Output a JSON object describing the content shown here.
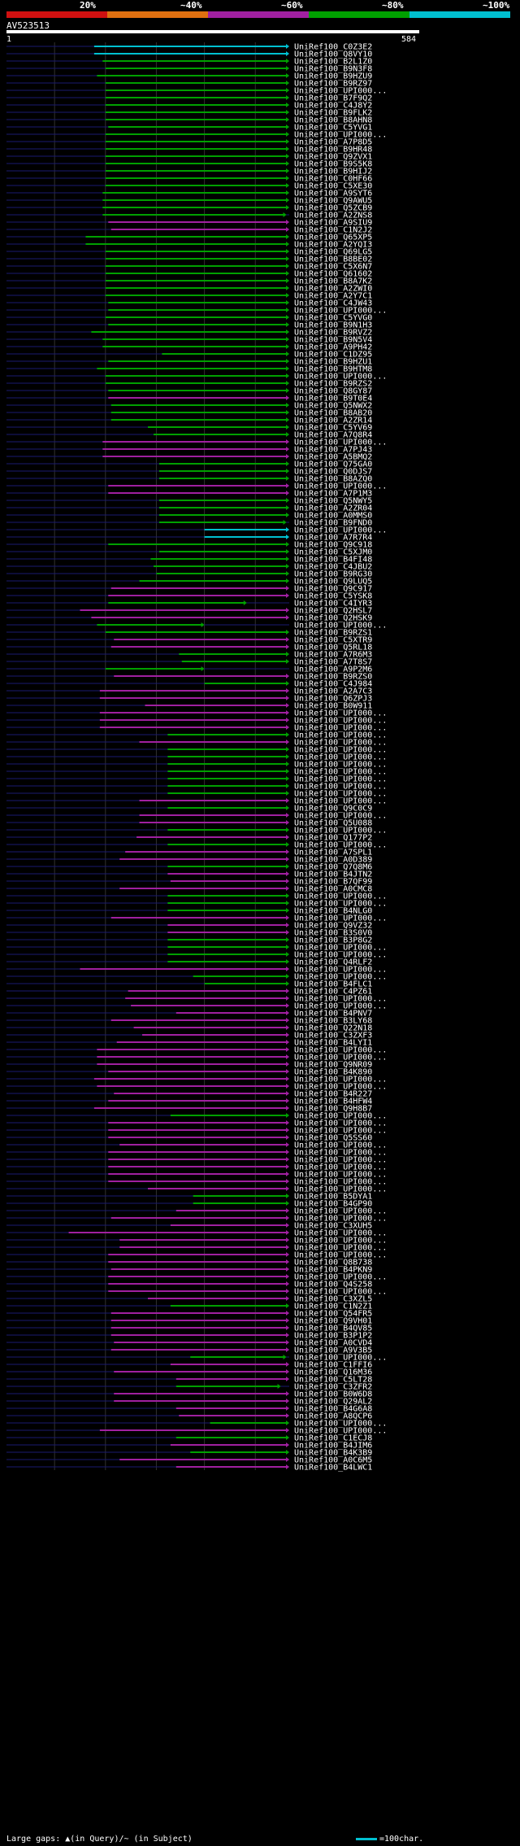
{
  "query_id": "AV523513",
  "ruler": {
    "start": "1",
    "end": "584"
  },
  "identity_legend": [
    {
      "label": "20%",
      "color": "#d01010"
    },
    {
      "label": "~40%",
      "color": "#e07010"
    },
    {
      "label": "~60%",
      "color": "#a020a0"
    },
    {
      "label": "~80%",
      "color": "#00a000"
    },
    {
      "label": "~100%",
      "color": "#00c0d0"
    }
  ],
  "footer": {
    "gaps_note": "Large gaps: ▲(in Query)/~ (in Subject)",
    "scale_note": "=100char."
  },
  "hits": [
    {
      "id": "UniRef100_C0Z3E2",
      "s": 0.31,
      "e": 1.0,
      "c": "c"
    },
    {
      "id": "UniRef100_Q8VY10",
      "s": 0.31,
      "e": 1.0,
      "c": "c"
    },
    {
      "id": "UniRef100_B2L1Z0",
      "s": 0.34,
      "e": 1.0,
      "c": "g"
    },
    {
      "id": "UniRef100_B9N3F8",
      "s": 0.35,
      "e": 1.0,
      "c": "g"
    },
    {
      "id": "UniRef100_B9HZU9",
      "s": 0.32,
      "e": 1.0,
      "c": "g"
    },
    {
      "id": "UniRef100_B9RZ97",
      "s": 0.35,
      "e": 1.0,
      "c": "g"
    },
    {
      "id": "UniRef100_UPI000...",
      "s": 0.35,
      "e": 1.0,
      "c": "g"
    },
    {
      "id": "UniRef100_B7F9Q2",
      "s": 0.35,
      "e": 1.0,
      "c": "g"
    },
    {
      "id": "UniRef100_C4J8Y2",
      "s": 0.35,
      "e": 1.0,
      "c": "g"
    },
    {
      "id": "UniRef100_B9FLK2",
      "s": 0.35,
      "e": 1.0,
      "c": "g"
    },
    {
      "id": "UniRef100_B8AHN8",
      "s": 0.35,
      "e": 1.0,
      "c": "g"
    },
    {
      "id": "UniRef100_C5YVG1",
      "s": 0.36,
      "e": 1.0,
      "c": "g"
    },
    {
      "id": "UniRef100_UPI000...",
      "s": 0.35,
      "e": 1.0,
      "c": "g"
    },
    {
      "id": "UniRef100_A7P8D5",
      "s": 0.35,
      "e": 1.0,
      "c": "g"
    },
    {
      "id": "UniRef100_B9HR48",
      "s": 0.35,
      "e": 1.0,
      "c": "g"
    },
    {
      "id": "UniRef100_Q9ZVX1",
      "s": 0.35,
      "e": 1.0,
      "c": "g"
    },
    {
      "id": "UniRef100_B9S5K8",
      "s": 0.35,
      "e": 1.0,
      "c": "g"
    },
    {
      "id": "UniRef100_B9HIJ2",
      "s": 0.35,
      "e": 1.0,
      "c": "g"
    },
    {
      "id": "UniRef100_C0HF66",
      "s": 0.35,
      "e": 1.0,
      "c": "g"
    },
    {
      "id": "UniRef100_C5XE30",
      "s": 0.35,
      "e": 1.0,
      "c": "g"
    },
    {
      "id": "UniRef100_A9SYT6",
      "s": 0.34,
      "e": 1.0,
      "c": "g"
    },
    {
      "id": "UniRef100_Q9AWU5",
      "s": 0.34,
      "e": 1.0,
      "c": "g"
    },
    {
      "id": "UniRef100_Q5ZCB9",
      "s": 0.34,
      "e": 1.0,
      "c": "g"
    },
    {
      "id": "UniRef100_A2ZNS8",
      "s": 0.34,
      "e": 0.99,
      "c": "g"
    },
    {
      "id": "UniRef100_A9SIU9",
      "s": 0.36,
      "e": 1.0,
      "c": "m"
    },
    {
      "id": "UniRef100_C1N2J2",
      "s": 0.37,
      "e": 1.0,
      "c": "m"
    },
    {
      "id": "UniRef100_Q65XP5",
      "s": 0.28,
      "e": 1.0,
      "c": "g"
    },
    {
      "id": "UniRef100_A2YQI3",
      "s": 0.28,
      "e": 1.0,
      "c": "g"
    },
    {
      "id": "UniRef100_Q69LG5",
      "s": 0.35,
      "e": 1.0,
      "c": "g"
    },
    {
      "id": "UniRef100_B8BE02",
      "s": 0.35,
      "e": 1.0,
      "c": "g"
    },
    {
      "id": "UniRef100_C5X6N7",
      "s": 0.35,
      "e": 1.0,
      "c": "g"
    },
    {
      "id": "UniRef100_Q61602",
      "s": 0.35,
      "e": 1.0,
      "c": "g"
    },
    {
      "id": "UniRef100_B8A7K2",
      "s": 0.35,
      "e": 1.0,
      "c": "g"
    },
    {
      "id": "UniRef100_A2ZWI0",
      "s": 0.35,
      "e": 1.0,
      "c": "g"
    },
    {
      "id": "UniRef100_A2Y7C1",
      "s": 0.35,
      "e": 1.0,
      "c": "g"
    },
    {
      "id": "UniRef100_C4JW43",
      "s": 0.36,
      "e": 1.0,
      "c": "g"
    },
    {
      "id": "UniRef100_UPI000...",
      "s": 0.36,
      "e": 1.0,
      "c": "g"
    },
    {
      "id": "UniRef100_C5YVG0",
      "s": 0.35,
      "e": 1.0,
      "c": "g"
    },
    {
      "id": "UniRef100_B9N1H3",
      "s": 0.36,
      "e": 1.0,
      "c": "g"
    },
    {
      "id": "UniRef100_B9RVZ2",
      "s": 0.3,
      "e": 1.0,
      "c": "g"
    },
    {
      "id": "UniRef100_B9N5V4",
      "s": 0.34,
      "e": 1.0,
      "c": "g"
    },
    {
      "id": "UniRef100_A9PH42",
      "s": 0.34,
      "e": 1.0,
      "c": "g"
    },
    {
      "id": "UniRef100_C1DZ95",
      "s": 0.55,
      "e": 1.0,
      "c": "g"
    },
    {
      "id": "UniRef100_B9HZU1",
      "s": 0.36,
      "e": 1.0,
      "c": "g"
    },
    {
      "id": "UniRef100_B9HTM8",
      "s": 0.32,
      "e": 1.0,
      "c": "g"
    },
    {
      "id": "UniRef100_UPI000...",
      "s": 0.35,
      "e": 1.0,
      "c": "g"
    },
    {
      "id": "UniRef100_B9RZS2",
      "s": 0.35,
      "e": 1.0,
      "c": "g"
    },
    {
      "id": "UniRef100_Q8GY87",
      "s": 0.36,
      "e": 1.0,
      "c": "g"
    },
    {
      "id": "UniRef100_B9T0E4",
      "s": 0.36,
      "e": 1.0,
      "c": "m"
    },
    {
      "id": "UniRef100_Q5NWX2",
      "s": 0.37,
      "e": 1.0,
      "c": "g"
    },
    {
      "id": "UniRef100_B8AB20",
      "s": 0.37,
      "e": 1.0,
      "c": "g"
    },
    {
      "id": "UniRef100_A2ZR14",
      "s": 0.37,
      "e": 1.0,
      "c": "g"
    },
    {
      "id": "UniRef100_C5YV69",
      "s": 0.5,
      "e": 1.0,
      "c": "g"
    },
    {
      "id": "UniRef100_A7Q8R4",
      "s": 0.52,
      "e": 1.0,
      "c": "g"
    },
    {
      "id": "UniRef100_UPI000...",
      "s": 0.34,
      "e": 1.0,
      "c": "m"
    },
    {
      "id": "UniRef100_A7PJ43",
      "s": 0.34,
      "e": 1.0,
      "c": "m"
    },
    {
      "id": "UniRef100_A5BMQ2",
      "s": 0.34,
      "e": 1.0,
      "c": "m"
    },
    {
      "id": "UniRef100_Q75GA0",
      "s": 0.54,
      "e": 1.0,
      "c": "g"
    },
    {
      "id": "UniRef100_Q0DJS7",
      "s": 0.54,
      "e": 1.0,
      "c": "g"
    },
    {
      "id": "UniRef100_B8AZQ0",
      "s": 0.54,
      "e": 1.0,
      "c": "g"
    },
    {
      "id": "UniRef100_UPI000...",
      "s": 0.36,
      "e": 1.0,
      "c": "m"
    },
    {
      "id": "UniRef100_A7P1M3",
      "s": 0.36,
      "e": 1.0,
      "c": "m"
    },
    {
      "id": "UniRef100_Q5NWY5",
      "s": 0.54,
      "e": 1.0,
      "c": "g"
    },
    {
      "id": "UniRef100_A2ZR04",
      "s": 0.54,
      "e": 1.0,
      "c": "g"
    },
    {
      "id": "UniRef100_A0MMS0",
      "s": 0.54,
      "e": 1.0,
      "c": "g"
    },
    {
      "id": "UniRef100_B9FND0",
      "s": 0.54,
      "e": 0.99,
      "c": "g"
    },
    {
      "id": "UniRef100_UPI000...",
      "s": 0.7,
      "e": 1.0,
      "c": "c"
    },
    {
      "id": "UniRef100_A7R7R4",
      "s": 0.7,
      "e": 1.0,
      "c": "c"
    },
    {
      "id": "UniRef100_Q9C918",
      "s": 0.36,
      "e": 1.0,
      "c": "g"
    },
    {
      "id": "UniRef100_C5XJM0",
      "s": 0.54,
      "e": 1.0,
      "c": "g"
    },
    {
      "id": "UniRef100_B4FI48",
      "s": 0.51,
      "e": 1.0,
      "c": "g"
    },
    {
      "id": "UniRef100_C4JBU2",
      "s": 0.52,
      "e": 1.0,
      "c": "g"
    },
    {
      "id": "UniRef100_B9RG30",
      "s": 0.53,
      "e": 1.0,
      "c": "g"
    },
    {
      "id": "UniRef100_Q9LUQ5",
      "s": 0.47,
      "e": 1.0,
      "c": "g"
    },
    {
      "id": "UniRef100_Q9C917",
      "s": 0.37,
      "e": 1.0,
      "c": "m"
    },
    {
      "id": "UniRef100_C5YSK8",
      "s": 0.36,
      "e": 1.0,
      "c": "m"
    },
    {
      "id": "UniRef100_C4IYR3",
      "s": 0.36,
      "e": 0.85,
      "c": "g"
    },
    {
      "id": "UniRef100_Q2HSL7",
      "s": 0.26,
      "e": 1.0,
      "c": "m"
    },
    {
      "id": "UniRef100_Q2HSK9",
      "s": 0.3,
      "e": 1.0,
      "c": "m"
    },
    {
      "id": "UniRef100_UPI000...",
      "s": 0.32,
      "e": 0.7,
      "c": "g"
    },
    {
      "id": "UniRef100_B9RZS1",
      "s": 0.35,
      "e": 1.0,
      "c": "g"
    },
    {
      "id": "UniRef100_C5XTR9",
      "s": 0.38,
      "e": 1.0,
      "c": "m"
    },
    {
      "id": "UniRef100_Q5RL18",
      "s": 0.37,
      "e": 1.0,
      "c": "m"
    },
    {
      "id": "UniRef100_A7R6M3",
      "s": 0.61,
      "e": 1.0,
      "c": "g"
    },
    {
      "id": "UniRef100_A7T8S7",
      "s": 0.62,
      "e": 1.0,
      "c": "g"
    },
    {
      "id": "UniRef100_A9P2M6",
      "s": 0.35,
      "e": 0.7,
      "c": "g"
    },
    {
      "id": "UniRef100_B9RZS0",
      "s": 0.38,
      "e": 1.0,
      "c": "m"
    },
    {
      "id": "UniRef100_C4J984",
      "s": 0.7,
      "e": 1.0,
      "c": "g"
    },
    {
      "id": "UniRef100_A2A7C3",
      "s": 0.33,
      "e": 1.0,
      "c": "m"
    },
    {
      "id": "UniRef100_Q6ZPJ3",
      "s": 0.33,
      "e": 1.0,
      "c": "m"
    },
    {
      "id": "UniRef100_B0W911",
      "s": 0.49,
      "e": 1.0,
      "c": "m"
    },
    {
      "id": "UniRef100_UPI000...",
      "s": 0.33,
      "e": 1.0,
      "c": "m"
    },
    {
      "id": "UniRef100_UPI000...",
      "s": 0.33,
      "e": 1.0,
      "c": "m"
    },
    {
      "id": "UniRef100_UPI000...",
      "s": 0.33,
      "e": 1.0,
      "c": "m"
    },
    {
      "id": "UniRef100_UPI000...",
      "s": 0.57,
      "e": 1.0,
      "c": "g"
    },
    {
      "id": "UniRef100_UPI000...",
      "s": 0.47,
      "e": 1.0,
      "c": "m"
    },
    {
      "id": "UniRef100_UPI000...",
      "s": 0.57,
      "e": 1.0,
      "c": "g"
    },
    {
      "id": "UniRef100_UPI000...",
      "s": 0.57,
      "e": 1.0,
      "c": "g"
    },
    {
      "id": "UniRef100_UPI000...",
      "s": 0.57,
      "e": 1.0,
      "c": "g"
    },
    {
      "id": "UniRef100_UPI000...",
      "s": 0.57,
      "e": 1.0,
      "c": "g"
    },
    {
      "id": "UniRef100_UPI000...",
      "s": 0.57,
      "e": 1.0,
      "c": "g"
    },
    {
      "id": "UniRef100_UPI000...",
      "s": 0.57,
      "e": 1.0,
      "c": "g"
    },
    {
      "id": "UniRef100_UPI000...",
      "s": 0.57,
      "e": 1.0,
      "c": "g"
    },
    {
      "id": "UniRef100_UPI000...",
      "s": 0.47,
      "e": 1.0,
      "c": "m"
    },
    {
      "id": "UniRef100_Q9C0C9",
      "s": 0.57,
      "e": 1.0,
      "c": "g"
    },
    {
      "id": "UniRef100_UPI000...",
      "s": 0.47,
      "e": 1.0,
      "c": "m"
    },
    {
      "id": "UniRef100_Q5U088",
      "s": 0.47,
      "e": 1.0,
      "c": "m"
    },
    {
      "id": "UniRef100_UPI000...",
      "s": 0.57,
      "e": 1.0,
      "c": "g"
    },
    {
      "id": "UniRef100_Q177P2",
      "s": 0.46,
      "e": 1.0,
      "c": "m"
    },
    {
      "id": "UniRef100_UPI000...",
      "s": 0.57,
      "e": 1.0,
      "c": "g"
    },
    {
      "id": "UniRef100_A7SPL1",
      "s": 0.42,
      "e": 1.0,
      "c": "m"
    },
    {
      "id": "UniRef100_A0D389",
      "s": 0.4,
      "e": 1.0,
      "c": "m"
    },
    {
      "id": "UniRef100_Q7Q8M6",
      "s": 0.57,
      "e": 1.0,
      "c": "g"
    },
    {
      "id": "UniRef100_B4JTN2",
      "s": 0.57,
      "e": 1.0,
      "c": "m"
    },
    {
      "id": "UniRef100_B7QF99",
      "s": 0.58,
      "e": 1.0,
      "c": "m"
    },
    {
      "id": "UniRef100_A0CMC8",
      "s": 0.4,
      "e": 1.0,
      "c": "m"
    },
    {
      "id": "UniRef100_UPI000...",
      "s": 0.57,
      "e": 1.0,
      "c": "g"
    },
    {
      "id": "UniRef100_UPI000...",
      "s": 0.57,
      "e": 1.0,
      "c": "g"
    },
    {
      "id": "UniRef100_B4NLG0",
      "s": 0.57,
      "e": 1.0,
      "c": "g"
    },
    {
      "id": "UniRef100_UPI000...",
      "s": 0.37,
      "e": 1.0,
      "c": "m"
    },
    {
      "id": "UniRef100_Q9VZ32",
      "s": 0.57,
      "e": 1.0,
      "c": "m"
    },
    {
      "id": "UniRef100_B3S0V0",
      "s": 0.57,
      "e": 1.0,
      "c": "m"
    },
    {
      "id": "UniRef100_B3P8G2",
      "s": 0.57,
      "e": 1.0,
      "c": "g"
    },
    {
      "id": "UniRef100_UPI000...",
      "s": 0.57,
      "e": 1.0,
      "c": "g"
    },
    {
      "id": "UniRef100_UPI000...",
      "s": 0.57,
      "e": 1.0,
      "c": "g"
    },
    {
      "id": "UniRef100_Q4RLF2",
      "s": 0.57,
      "e": 1.0,
      "c": "g"
    },
    {
      "id": "UniRef100_UPI000...",
      "s": 0.26,
      "e": 1.0,
      "c": "m"
    },
    {
      "id": "UniRef100_UPI000...",
      "s": 0.66,
      "e": 1.0,
      "c": "g"
    },
    {
      "id": "UniRef100_B4FLC1",
      "s": 0.7,
      "e": 1.0,
      "c": "g"
    },
    {
      "id": "UniRef100_C4PZ61",
      "s": 0.43,
      "e": 1.0,
      "c": "m"
    },
    {
      "id": "UniRef100_UPI000...",
      "s": 0.42,
      "e": 1.0,
      "c": "m"
    },
    {
      "id": "UniRef100_UPI000...",
      "s": 0.44,
      "e": 1.0,
      "c": "m"
    },
    {
      "id": "UniRef100_B4PNV7",
      "s": 0.6,
      "e": 1.0,
      "c": "m"
    },
    {
      "id": "UniRef100_B3LY68",
      "s": 0.37,
      "e": 1.0,
      "c": "m"
    },
    {
      "id": "UniRef100_Q22N18",
      "s": 0.45,
      "e": 1.0,
      "c": "m"
    },
    {
      "id": "UniRef100_C3ZXF3",
      "s": 0.48,
      "e": 1.0,
      "c": "m"
    },
    {
      "id": "UniRef100_B4LYI1",
      "s": 0.39,
      "e": 1.0,
      "c": "m"
    },
    {
      "id": "UniRef100_UPI000...",
      "s": 0.32,
      "e": 1.0,
      "c": "m"
    },
    {
      "id": "UniRef100_UPI000...",
      "s": 0.32,
      "e": 1.0,
      "c": "m"
    },
    {
      "id": "UniRef100_Q9NR09",
      "s": 0.32,
      "e": 1.0,
      "c": "m"
    },
    {
      "id": "UniRef100_B4K890",
      "s": 0.36,
      "e": 1.0,
      "c": "m"
    },
    {
      "id": "UniRef100_UPI000...",
      "s": 0.31,
      "e": 1.0,
      "c": "m"
    },
    {
      "id": "UniRef100_UPI000...",
      "s": 0.32,
      "e": 1.0,
      "c": "m"
    },
    {
      "id": "UniRef100_B4R227",
      "s": 0.38,
      "e": 1.0,
      "c": "m"
    },
    {
      "id": "UniRef100_B4HFW4",
      "s": 0.36,
      "e": 1.0,
      "c": "m"
    },
    {
      "id": "UniRef100_Q9H8B7",
      "s": 0.31,
      "e": 1.0,
      "c": "m"
    },
    {
      "id": "UniRef100_UPI000...",
      "s": 0.58,
      "e": 1.0,
      "c": "g"
    },
    {
      "id": "UniRef100_UPI000...",
      "s": 0.36,
      "e": 1.0,
      "c": "m"
    },
    {
      "id": "UniRef100_UPI000...",
      "s": 0.36,
      "e": 1.0,
      "c": "m"
    },
    {
      "id": "UniRef100_Q5SS60",
      "s": 0.36,
      "e": 1.0,
      "c": "m"
    },
    {
      "id": "UniRef100_UPI000...",
      "s": 0.4,
      "e": 1.0,
      "c": "m"
    },
    {
      "id": "UniRef100_UPI000...",
      "s": 0.36,
      "e": 1.0,
      "c": "m"
    },
    {
      "id": "UniRef100_UPI000...",
      "s": 0.36,
      "e": 1.0,
      "c": "m"
    },
    {
      "id": "UniRef100_UPI000...",
      "s": 0.36,
      "e": 1.0,
      "c": "m"
    },
    {
      "id": "UniRef100_UPI000...",
      "s": 0.36,
      "e": 1.0,
      "c": "m"
    },
    {
      "id": "UniRef100_UPI000...",
      "s": 0.36,
      "e": 1.0,
      "c": "m"
    },
    {
      "id": "UniRef100_UPI000...",
      "s": 0.5,
      "e": 1.0,
      "c": "m"
    },
    {
      "id": "UniRef100_B5DYA1",
      "s": 0.66,
      "e": 1.0,
      "c": "g"
    },
    {
      "id": "UniRef100_B4GP90",
      "s": 0.66,
      "e": 1.0,
      "c": "g"
    },
    {
      "id": "UniRef100_UPI000...",
      "s": 0.6,
      "e": 1.0,
      "c": "m"
    },
    {
      "id": "UniRef100_UPI000...",
      "s": 0.37,
      "e": 1.0,
      "c": "m"
    },
    {
      "id": "UniRef100_C3XUH5",
      "s": 0.58,
      "e": 1.0,
      "c": "m"
    },
    {
      "id": "UniRef100_UPI000...",
      "s": 0.22,
      "e": 1.0,
      "c": "m"
    },
    {
      "id": "UniRef100_UPI000...",
      "s": 0.4,
      "e": 1.0,
      "c": "m"
    },
    {
      "id": "UniRef100_UPI000...",
      "s": 0.4,
      "e": 1.0,
      "c": "m"
    },
    {
      "id": "UniRef100_UPI000...",
      "s": 0.36,
      "e": 1.0,
      "c": "m"
    },
    {
      "id": "UniRef100_Q8B738",
      "s": 0.36,
      "e": 1.0,
      "c": "m"
    },
    {
      "id": "UniRef100_B4PKN9",
      "s": 0.37,
      "e": 1.0,
      "c": "m"
    },
    {
      "id": "UniRef100_UPI000...",
      "s": 0.36,
      "e": 1.0,
      "c": "m"
    },
    {
      "id": "UniRef100_Q4S258",
      "s": 0.36,
      "e": 1.0,
      "c": "m"
    },
    {
      "id": "UniRef100_UPI000...",
      "s": 0.36,
      "e": 1.0,
      "c": "m"
    },
    {
      "id": "UniRef100_C3XZL5",
      "s": 0.5,
      "e": 1.0,
      "c": "m"
    },
    {
      "id": "UniRef100_C1N2Z1",
      "s": 0.58,
      "e": 1.0,
      "c": "g"
    },
    {
      "id": "UniRef100_Q54FR5",
      "s": 0.37,
      "e": 1.0,
      "c": "m"
    },
    {
      "id": "UniRef100_Q9VH01",
      "s": 0.37,
      "e": 1.0,
      "c": "m"
    },
    {
      "id": "UniRef100_B4QV85",
      "s": 0.37,
      "e": 1.0,
      "c": "m"
    },
    {
      "id": "UniRef100_B3P1P2",
      "s": 0.37,
      "e": 1.0,
      "c": "m"
    },
    {
      "id": "UniRef100_A0CVD4",
      "s": 0.38,
      "e": 1.0,
      "c": "m"
    },
    {
      "id": "UniRef100_A9V3B5",
      "s": 0.37,
      "e": 1.0,
      "c": "m"
    },
    {
      "id": "UniRef100_UPI000...",
      "s": 0.65,
      "e": 0.99,
      "c": "g"
    },
    {
      "id": "UniRef100_C1FFI6",
      "s": 0.58,
      "e": 1.0,
      "c": "m"
    },
    {
      "id": "UniRef100_Q16M36",
      "s": 0.38,
      "e": 1.0,
      "c": "m"
    },
    {
      "id": "UniRef100_C5LT28",
      "s": 0.6,
      "e": 1.0,
      "c": "m"
    },
    {
      "id": "UniRef100_C3ZFR2",
      "s": 0.6,
      "e": 0.97,
      "c": "g"
    },
    {
      "id": "UniRef100_B0W6D8",
      "s": 0.38,
      "e": 1.0,
      "c": "m"
    },
    {
      "id": "UniRef100_Q29AL2",
      "s": 0.38,
      "e": 1.0,
      "c": "m"
    },
    {
      "id": "UniRef100_B4G6A8",
      "s": 0.6,
      "e": 1.0,
      "c": "m"
    },
    {
      "id": "UniRef100_A8QCP6",
      "s": 0.61,
      "e": 1.0,
      "c": "m"
    },
    {
      "id": "UniRef100_UPI000...",
      "s": 0.72,
      "e": 1.0,
      "c": "g"
    },
    {
      "id": "UniRef100_UPI000...",
      "s": 0.33,
      "e": 1.0,
      "c": "m"
    },
    {
      "id": "UniRef100_C1ECJ8",
      "s": 0.6,
      "e": 1.0,
      "c": "g"
    },
    {
      "id": "UniRef100_B4JIM6",
      "s": 0.58,
      "e": 1.0,
      "c": "m"
    },
    {
      "id": "UniRef100_B4K3B9",
      "s": 0.65,
      "e": 1.0,
      "c": "g"
    },
    {
      "id": "UniRef100_A0C6M5",
      "s": 0.4,
      "e": 1.0,
      "c": "m"
    },
    {
      "id": "UniRef100_B4LWC1",
      "s": 0.6,
      "e": 1.0,
      "c": "m"
    }
  ]
}
